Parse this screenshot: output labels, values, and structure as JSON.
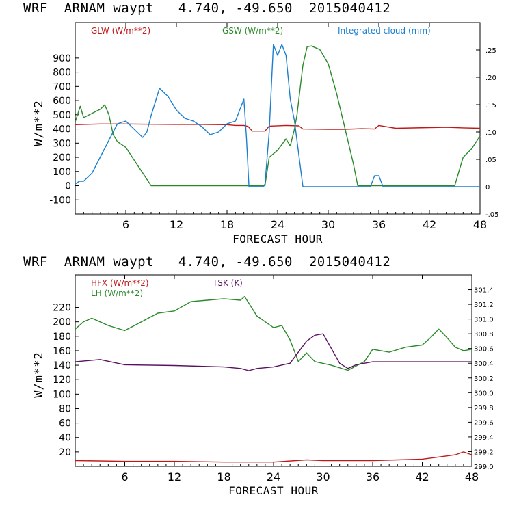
{
  "charts": [
    {
      "header": "WRF  ARNAM waypt   4.740, -49.650  2015040412",
      "xlabel": "FORECAST HOUR",
      "ylabel": "W/m**2",
      "legend": [
        {
          "label": "GLW (W/m**2)",
          "color": "#c01818"
        },
        {
          "label": "GSW (W/m**2)",
          "color": "#2a8a2a"
        },
        {
          "label": "Integrated cloud (mm)",
          "color": "#1a7fd0"
        }
      ]
    },
    {
      "header": "WRF  ARNAM waypt   4.740, -49.650  2015040412",
      "xlabel": "FORECAST HOUR",
      "ylabel": "W/m**2",
      "legend": [
        {
          "label": "HFX (W/m**2)",
          "color": "#c01818"
        },
        {
          "label": "LH  (W/m**2)",
          "color": "#2a8a2a"
        },
        {
          "label": "TSK (K)",
          "color": "#5a1060"
        }
      ]
    }
  ],
  "chart_data": [
    {
      "type": "line",
      "title": "WRF  ARNAM waypt   4.740, -49.650  2015040412",
      "xlabel": "FORECAST HOUR",
      "ylabel": "W/m**2",
      "xlim": [
        0,
        48
      ],
      "ylim": [
        -200,
        1150
      ],
      "y2lim": [
        -0.05,
        0.3
      ],
      "xticks": [
        6,
        12,
        18,
        24,
        30,
        36,
        42,
        48
      ],
      "yticks": [
        -100,
        0,
        100,
        200,
        300,
        400,
        500,
        600,
        700,
        800,
        900
      ],
      "y2ticks": [
        -0.05,
        0,
        0.05,
        0.1,
        0.15,
        0.2,
        0.25
      ],
      "y2ticklabels": [
        "-.05",
        "0",
        ".05",
        ".10",
        ".15",
        ".20",
        ".25"
      ],
      "legend_position": "top",
      "series": [
        {
          "name": "GLW (W/m**2)",
          "color": "#c01818",
          "axis": "left",
          "x": [
            0,
            1,
            3,
            6,
            9,
            12,
            15,
            18,
            19,
            20,
            20.5,
            21,
            22.5,
            23,
            25,
            26.5,
            27,
            30,
            32,
            34,
            35.5,
            36,
            38,
            42,
            44,
            46,
            48
          ],
          "y": [
            430,
            432,
            435,
            435,
            433,
            432,
            432,
            430,
            425,
            425,
            418,
            385,
            385,
            420,
            425,
            422,
            400,
            398,
            398,
            402,
            400,
            425,
            405,
            410,
            412,
            408,
            405
          ]
        },
        {
          "name": "GSW (W/m**2)",
          "color": "#2a8a2a",
          "axis": "left",
          "x": [
            0,
            0.6,
            1,
            2,
            3,
            3.5,
            4,
            4.5,
            5,
            6,
            7,
            8,
            9,
            12,
            15,
            18,
            20,
            21,
            22,
            22.5,
            23,
            24,
            25,
            25.5,
            26,
            26.3,
            26.5,
            27,
            27.5,
            28,
            29,
            30,
            31,
            32,
            33,
            33.5,
            34,
            36,
            40,
            44,
            45,
            46,
            47,
            48
          ],
          "y": [
            450,
            560,
            480,
            510,
            540,
            570,
            500,
            360,
            310,
            270,
            180,
            90,
            0,
            0,
            0,
            0,
            0,
            0,
            0,
            0,
            200,
            250,
            330,
            280,
            400,
            500,
            600,
            850,
            980,
            985,
            960,
            860,
            650,
            400,
            150,
            0,
            0,
            0,
            0,
            0,
            0,
            200,
            260,
            350
          ]
        },
        {
          "name": "Integrated cloud (mm)",
          "color": "#1a7fd0",
          "axis": "right",
          "x": [
            0,
            0.5,
            1,
            2,
            3,
            4,
            5,
            6,
            7,
            8,
            8.5,
            9,
            10,
            11,
            12,
            13,
            14,
            15,
            16,
            17,
            18,
            19,
            20,
            20.3,
            20.6,
            21,
            22,
            22.3,
            22.5,
            23,
            23.5,
            24,
            24.5,
            25,
            25.5,
            26,
            26.5,
            27,
            28,
            30,
            33,
            35,
            35.5,
            36,
            36.5,
            38,
            42,
            48
          ],
          "y": [
            0.005,
            0.01,
            0.01,
            0.025,
            0.055,
            0.085,
            0.115,
            0.12,
            0.105,
            0.09,
            0.1,
            0.13,
            0.18,
            0.165,
            0.14,
            0.125,
            0.12,
            0.11,
            0.095,
            0.1,
            0.115,
            0.12,
            0.16,
            0.09,
            0.0,
            0.0,
            0.0,
            0.0,
            0.005,
            0.1,
            0.26,
            0.24,
            0.26,
            0.24,
            0.16,
            0.12,
            0.06,
            0.0,
            0.0,
            0.0,
            0.0,
            0.0,
            0.02,
            0.02,
            0.0,
            0.0,
            0.0,
            0.0
          ]
        }
      ]
    },
    {
      "type": "line",
      "title": "WRF  ARNAM waypt   4.740, -49.650  2015040412",
      "xlabel": "FORECAST HOUR",
      "ylabel": "W/m**2",
      "xlim": [
        0,
        48
      ],
      "ylim": [
        0,
        265
      ],
      "y2lim": [
        299.0,
        301.6
      ],
      "xticks": [
        6,
        12,
        18,
        24,
        30,
        36,
        42,
        48
      ],
      "yticks": [
        20,
        40,
        60,
        80,
        100,
        120,
        140,
        160,
        180,
        200,
        220
      ],
      "y2ticks": [
        299.0,
        299.2,
        299.4,
        299.6,
        299.8,
        300.0,
        300.2,
        300.4,
        300.6,
        300.8,
        301.0,
        301.2,
        301.4
      ],
      "y2ticklabels": [
        "299.0",
        "299.2",
        "299.4",
        "299.6",
        "299.8",
        "300.0",
        "300.2",
        "300.4",
        "300.6",
        "300.8",
        "301.0",
        "301.2",
        "301.4"
      ],
      "legend_position": "top",
      "series": [
        {
          "name": "HFX (W/m**2)",
          "color": "#c01818",
          "axis": "left",
          "x": [
            0,
            6,
            12,
            18,
            24,
            28,
            30,
            33,
            36,
            39,
            42,
            44,
            46,
            47,
            48
          ],
          "y": [
            8,
            7,
            7,
            6,
            6,
            9,
            8,
            8,
            8,
            9,
            10,
            13,
            16,
            20,
            16
          ]
        },
        {
          "name": "LH  (W/m**2)",
          "color": "#2a8a2a",
          "axis": "left",
          "x": [
            0,
            1,
            2,
            3,
            4,
            6,
            8,
            10,
            12,
            14,
            16,
            18,
            20,
            20.5,
            21,
            22,
            24,
            25,
            26,
            27,
            28,
            29,
            31,
            33,
            35,
            36,
            38,
            40,
            42,
            43,
            44,
            45,
            46,
            47,
            48
          ],
          "y": [
            190,
            200,
            205,
            200,
            195,
            188,
            200,
            212,
            215,
            228,
            230,
            232,
            230,
            235,
            226,
            208,
            192,
            195,
            175,
            145,
            157,
            145,
            140,
            133,
            145,
            162,
            158,
            165,
            168,
            178,
            190,
            178,
            165,
            160,
            162
          ]
        },
        {
          "name": "TSK (K)",
          "color": "#5a1060",
          "axis": "right",
          "x": [
            0,
            3,
            6,
            12,
            18,
            20,
            21,
            22,
            24,
            26,
            27,
            28,
            29,
            30,
            31,
            32,
            33,
            34,
            36,
            42,
            48
          ],
          "y": [
            300.42,
            300.45,
            300.38,
            300.37,
            300.35,
            300.33,
            300.3,
            300.33,
            300.35,
            300.4,
            300.55,
            300.7,
            300.78,
            300.8,
            300.6,
            300.4,
            300.33,
            300.38,
            300.42,
            300.42,
            300.42
          ]
        }
      ]
    }
  ]
}
